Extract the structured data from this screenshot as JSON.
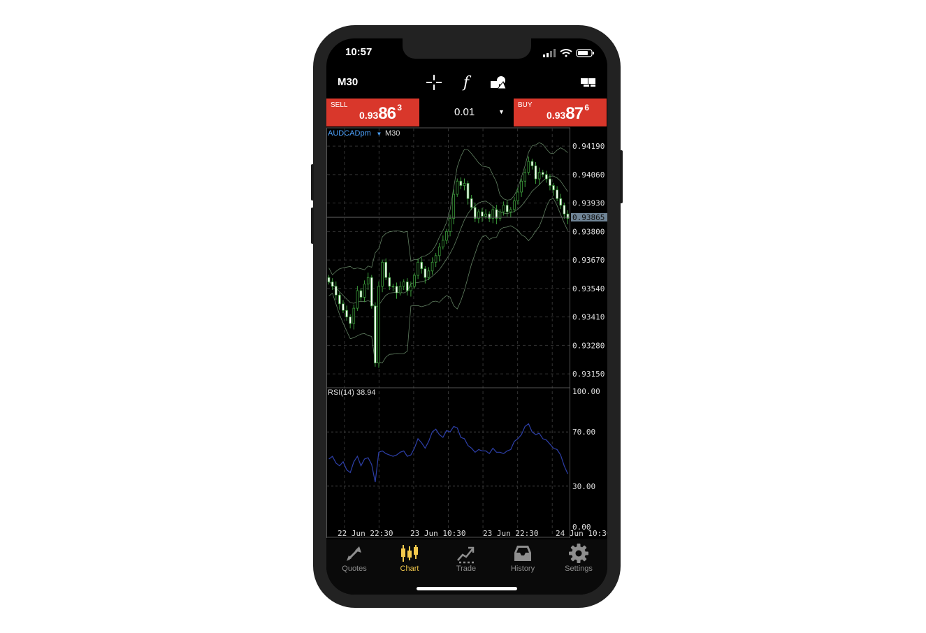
{
  "status_bar": {
    "time": "10:57"
  },
  "toolbar": {
    "timeframe": "M30",
    "tools": [
      {
        "icon": "crosshair-icon"
      },
      {
        "icon": "indicator-f-icon",
        "glyph": "f"
      },
      {
        "icon": "objects-icon"
      },
      {
        "icon": "chart-windows-icon"
      }
    ]
  },
  "trade": {
    "sell": {
      "label": "SELL",
      "price_small": "0.93",
      "price_big": "86",
      "price_sup": "3"
    },
    "buy": {
      "label": "BUY",
      "price_small": "0.93",
      "price_big": "87",
      "price_sup": "6"
    },
    "volume": "0.01"
  },
  "chart": {
    "symbol": "AUDCADpm",
    "timeframe": "M30",
    "current_price": "0.93865",
    "price_labels": [
      "0.94190",
      "0.94060",
      "0.93930",
      "0.93800",
      "0.93670",
      "0.93540",
      "0.93410",
      "0.93280",
      "0.93150"
    ],
    "rsi_label": "RSI(14) 38.94",
    "rsi_labels": [
      "100.00",
      "70.00",
      "30.00",
      "0.00"
    ],
    "time_labels": [
      "22 Jun 22:30",
      "23 Jun 10:30",
      "23 Jun 22:30",
      "24 Jun 10:30"
    ]
  },
  "chart_data": {
    "type": "line",
    "title": "",
    "series": [
      {
        "values": [
          0.9357,
          0.9355,
          0.9351,
          0.9347,
          0.9344,
          0.9341,
          0.9338,
          0.9345,
          0.9353,
          0.935,
          0.9356,
          0.9359,
          0.9346,
          0.932,
          0.9355,
          0.9366,
          0.9359,
          0.9355,
          0.9355,
          0.9352,
          0.9355,
          0.9357,
          0.9353,
          0.9355,
          0.936,
          0.9366,
          0.9363,
          0.9359,
          0.9362,
          0.9366,
          0.9369,
          0.9373,
          0.9376,
          0.938,
          0.9386,
          0.9397,
          0.9403,
          0.9401,
          0.9402,
          0.9395,
          0.9391,
          0.9386,
          0.9389,
          0.9387,
          0.9388,
          0.9386,
          0.939,
          0.9386,
          0.9389,
          0.9392,
          0.9389,
          0.939,
          0.9394,
          0.9398,
          0.9403,
          0.9407,
          0.9412,
          0.941,
          0.9404,
          0.9407,
          0.9406,
          0.9404,
          0.9401,
          0.9399,
          0.9395,
          0.9392,
          0.9388,
          0.9386
        ]
      }
    ],
    "rsi_values": [
      50,
      52,
      47,
      45,
      48,
      42,
      40,
      48,
      52,
      45,
      50,
      51,
      46,
      33,
      55,
      56,
      54,
      53,
      52,
      53,
      55,
      56,
      52,
      53,
      58,
      65,
      62,
      58,
      63,
      70,
      72,
      68,
      66,
      71,
      70,
      74,
      73,
      66,
      65,
      60,
      58,
      55,
      57,
      56,
      56,
      54,
      58,
      55,
      55,
      54,
      56,
      57,
      63,
      65,
      68,
      74,
      76,
      70,
      68,
      69,
      65,
      64,
      61,
      58,
      57,
      53,
      45,
      39
    ],
    "ylim": [
      0.9309,
      0.9427
    ],
    "rsi_ylim": [
      0,
      100
    ]
  },
  "colors": {
    "sell": "#d9372b",
    "buy": "#d9372b",
    "candle_bull": "#3b9c3b",
    "candle_bear": "#ffffff",
    "rsi_line": "#2d3fa8",
    "band": "#7aa07a",
    "accent": "#f2c94c"
  },
  "tabs": [
    {
      "id": "quotes",
      "label": "Quotes",
      "icon": "quotes-icon",
      "active": false
    },
    {
      "id": "chart",
      "label": "Chart",
      "icon": "chart-candles-icon",
      "active": true
    },
    {
      "id": "trade",
      "label": "Trade",
      "icon": "trade-icon",
      "active": false
    },
    {
      "id": "history",
      "label": "History",
      "icon": "history-inbox-icon",
      "active": false
    },
    {
      "id": "settings",
      "label": "Settings",
      "icon": "gear-icon",
      "active": false
    }
  ]
}
